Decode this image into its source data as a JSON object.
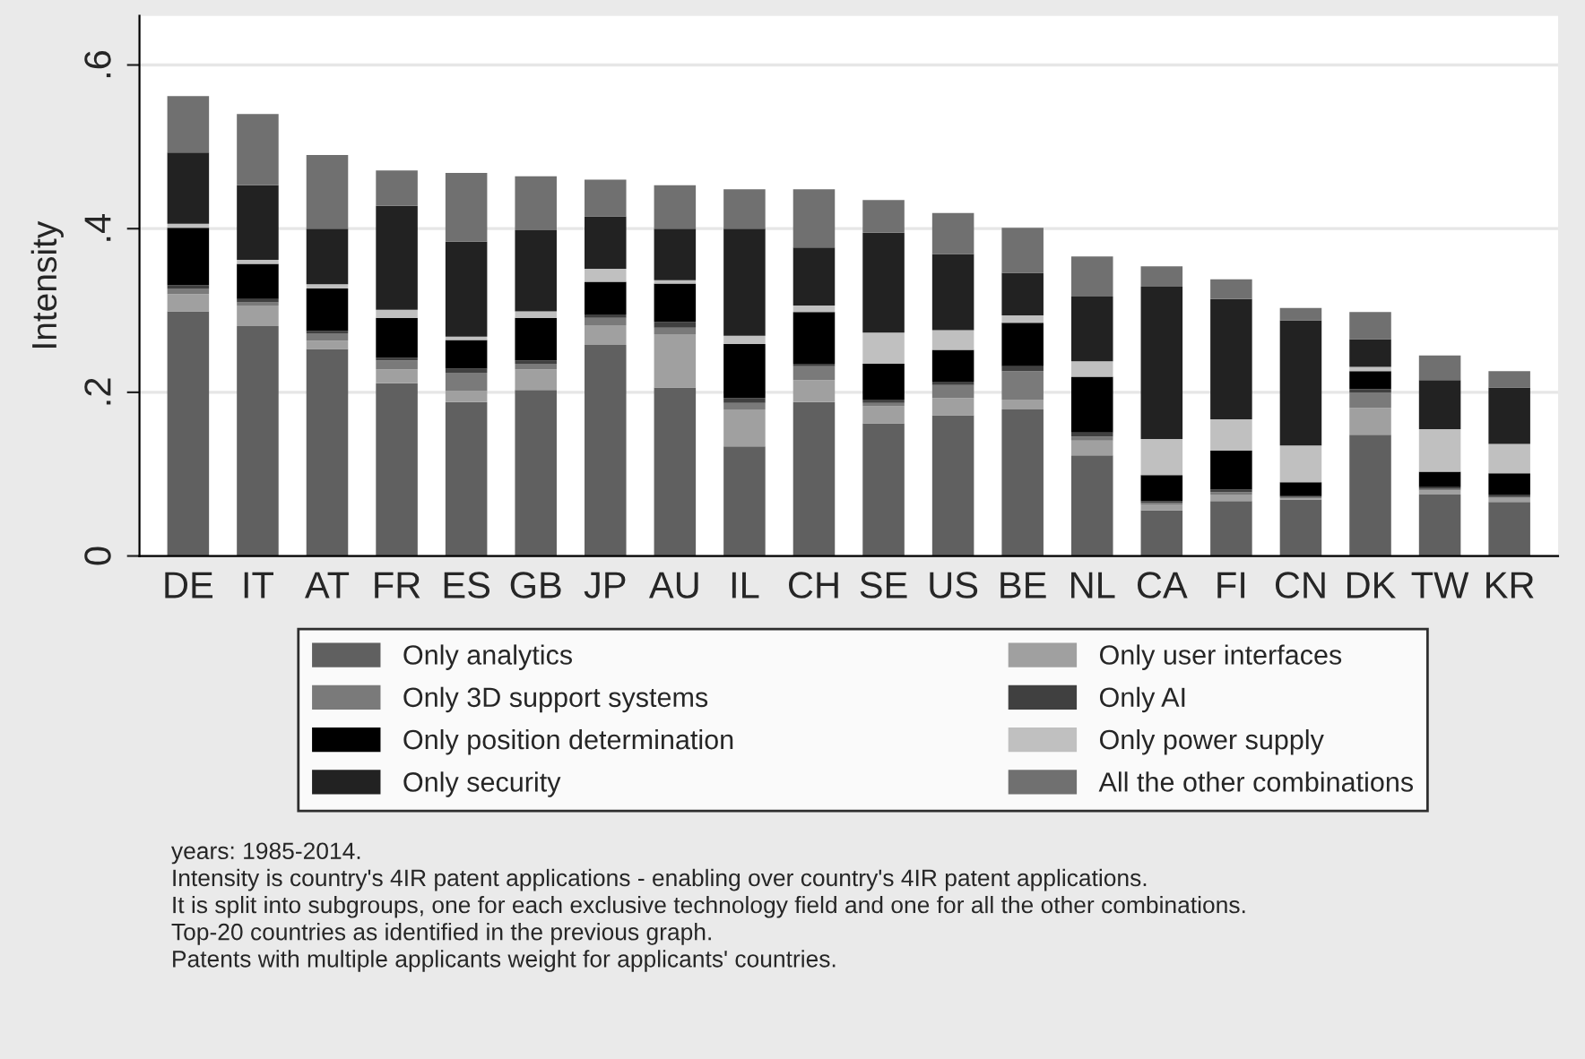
{
  "chart_data": {
    "type": "bar",
    "stacked": true,
    "ylabel": "Intensity",
    "categories": [
      "DE",
      "IT",
      "AT",
      "FR",
      "ES",
      "GB",
      "JP",
      "AU",
      "IL",
      "CH",
      "SE",
      "US",
      "BE",
      "NL",
      "CA",
      "FI",
      "CN",
      "DK",
      "TW",
      "KR"
    ],
    "series": [
      {
        "name": "Only analytics",
        "color": "#606060",
        "values": [
          0.299,
          0.281,
          0.253,
          0.211,
          0.188,
          0.203,
          0.258,
          0.206,
          0.134,
          0.188,
          0.162,
          0.172,
          0.179,
          0.123,
          0.056,
          0.067,
          0.069,
          0.148,
          0.075,
          0.066
        ]
      },
      {
        "name": "Only user interfaces",
        "color": "#a0a0a0",
        "values": [
          0.021,
          0.025,
          0.01,
          0.017,
          0.014,
          0.025,
          0.024,
          0.065,
          0.045,
          0.027,
          0.021,
          0.021,
          0.012,
          0.018,
          0.007,
          0.008,
          0.001,
          0.033,
          0.005,
          0.005
        ]
      },
      {
        "name": "Only 3D support systems",
        "color": "#7a7a7a",
        "values": [
          0.007,
          0.004,
          0.009,
          0.011,
          0.022,
          0.007,
          0.009,
          0.008,
          0.008,
          0.017,
          0.004,
          0.016,
          0.035,
          0.005,
          0.002,
          0.003,
          0.002,
          0.019,
          0.002,
          0.001
        ]
      },
      {
        "name": "Only AI",
        "color": "#404040",
        "values": [
          0.004,
          0.004,
          0.003,
          0.003,
          0.005,
          0.004,
          0.004,
          0.007,
          0.006,
          0.003,
          0.004,
          0.004,
          0.006,
          0.005,
          0.002,
          0.003,
          0.001,
          0.004,
          0.002,
          0.003
        ]
      },
      {
        "name": "Only position determination",
        "color": "#000000",
        "values": [
          0.07,
          0.043,
          0.052,
          0.049,
          0.035,
          0.052,
          0.04,
          0.047,
          0.066,
          0.063,
          0.044,
          0.039,
          0.053,
          0.068,
          0.032,
          0.048,
          0.017,
          0.022,
          0.019,
          0.026
        ]
      },
      {
        "name": "Only power supply",
        "color": "#c0c0c0",
        "values": [
          0.005,
          0.005,
          0.005,
          0.01,
          0.004,
          0.008,
          0.016,
          0.004,
          0.01,
          0.008,
          0.038,
          0.024,
          0.009,
          0.019,
          0.044,
          0.038,
          0.045,
          0.005,
          0.052,
          0.036
        ]
      },
      {
        "name": "Only security",
        "color": "#222222",
        "values": [
          0.087,
          0.091,
          0.068,
          0.127,
          0.116,
          0.099,
          0.064,
          0.063,
          0.131,
          0.071,
          0.122,
          0.093,
          0.052,
          0.079,
          0.186,
          0.147,
          0.153,
          0.034,
          0.06,
          0.069
        ]
      },
      {
        "name": "All the other combinations",
        "color": "#707070",
        "values": [
          0.069,
          0.087,
          0.09,
          0.043,
          0.084,
          0.066,
          0.045,
          0.053,
          0.048,
          0.071,
          0.04,
          0.05,
          0.055,
          0.049,
          0.025,
          0.024,
          0.015,
          0.033,
          0.03,
          0.02
        ]
      }
    ],
    "ylim": [
      0,
      0.66
    ],
    "yticks": [
      {
        "value": 0,
        "label": "0"
      },
      {
        "value": 0.2,
        "label": ".2"
      },
      {
        "value": 0.4,
        "label": ".4"
      },
      {
        "value": 0.6,
        "label": ".6"
      }
    ],
    "grid": "y",
    "legend": "bottom",
    "annotations": [
      "years: 1985-2014.",
      "Intensity is country's 4IR patent applications - enabling over country's 4IR patent applications.",
      "It is split into subgroups, one for each exclusive technology field and one for all the other combinations.",
      "Top-20 countries as identified in the previous graph.",
      "Patents with multiple applicants weight for applicants' countries."
    ]
  }
}
